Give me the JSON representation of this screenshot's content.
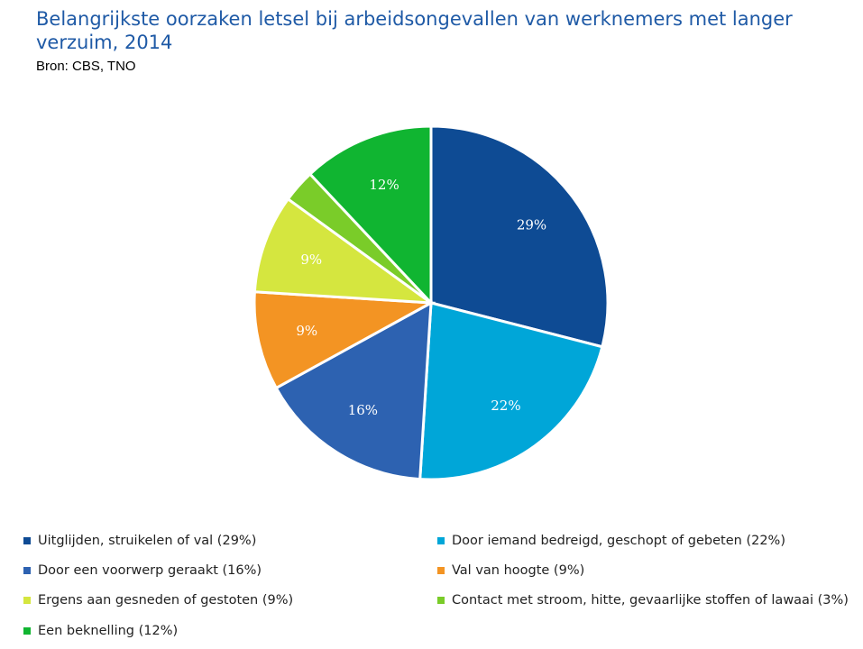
{
  "header": {
    "title": "Belangrijkste oorzaken letsel bij arbeidsongevallen van werknemers met langer verzuim, 2014",
    "source": "Bron: CBS, TNO"
  },
  "chart_data": {
    "type": "pie",
    "title": "Belangrijkste oorzaken letsel bij arbeidsongevallen van werknemers met langer verzuim, 2014",
    "slices": [
      {
        "label": "Uitglijden, struikelen of val (29%)",
        "value": 29,
        "data_label": "29%",
        "color": "#0e4b94"
      },
      {
        "label": "Door iemand bedreigd, geschopt of gebeten (22%)",
        "value": 22,
        "data_label": "22%",
        "color": "#00a6d8"
      },
      {
        "label": "Door een voorwerp geraakt (16%)",
        "value": 16,
        "data_label": "16%",
        "color": "#2d62b1"
      },
      {
        "label": "Val van hoogte (9%)",
        "value": 9,
        "data_label": "9%",
        "color": "#f39423"
      },
      {
        "label": "Ergens aan gesneden of gestoten (9%)",
        "value": 9,
        "data_label": "9%",
        "color": "#d5e63f"
      },
      {
        "label": "Contact met stroom, hitte, gevaarlijke stoffen of lawaai (3%)",
        "value": 3,
        "data_label": "",
        "color": "#7acc29"
      },
      {
        "label": "Een beknelling (12%)",
        "value": 12,
        "data_label": "12%",
        "color": "#10b531"
      }
    ],
    "legend_position": "bottom"
  }
}
